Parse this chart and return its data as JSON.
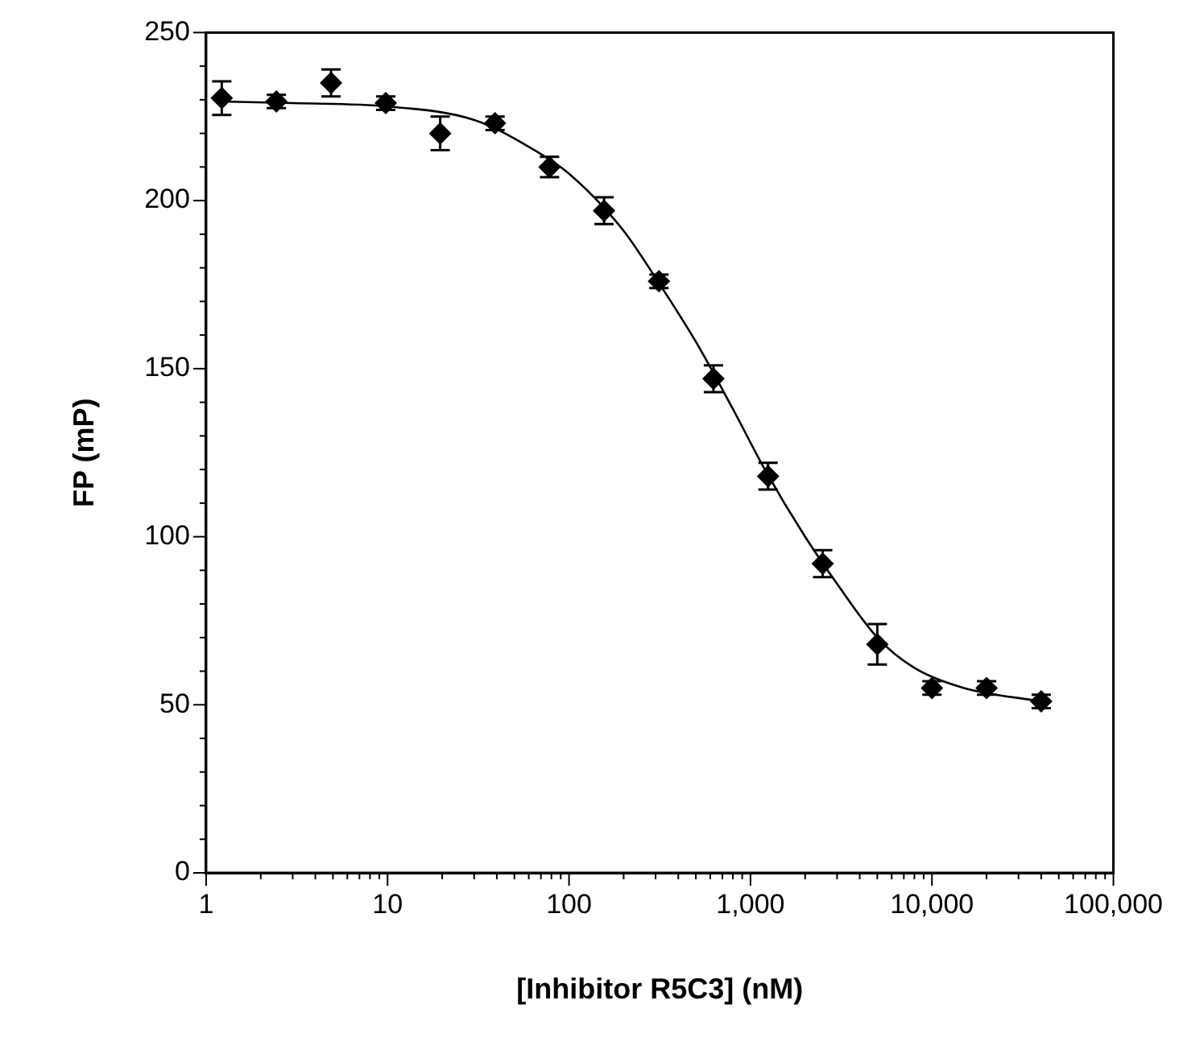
{
  "chart_data": {
    "type": "scatter",
    "xlabel": "[Inhibitor R5C3] (nM)",
    "ylabel": "FP (mP)",
    "log": "x",
    "grid": false,
    "xlim": [
      1,
      100000
    ],
    "xticks": [
      {
        "value": 1,
        "label": "1"
      },
      {
        "value": 2,
        "label": null
      },
      {
        "value": 3,
        "label": null
      },
      {
        "value": 4,
        "label": null
      },
      {
        "value": 5,
        "label": null
      },
      {
        "value": 6,
        "label": null
      },
      {
        "value": 7,
        "label": null
      },
      {
        "value": 8,
        "label": null
      },
      {
        "value": 9,
        "label": null
      },
      {
        "value": 10,
        "label": "10"
      },
      {
        "value": 20,
        "label": null
      },
      {
        "value": 30,
        "label": null
      },
      {
        "value": 40,
        "label": null
      },
      {
        "value": 50,
        "label": null
      },
      {
        "value": 60,
        "label": null
      },
      {
        "value": 70,
        "label": null
      },
      {
        "value": 80,
        "label": null
      },
      {
        "value": 90,
        "label": null
      },
      {
        "value": 100,
        "label": "100"
      },
      {
        "value": 200,
        "label": null
      },
      {
        "value": 300,
        "label": null
      },
      {
        "value": 400,
        "label": null
      },
      {
        "value": 500,
        "label": null
      },
      {
        "value": 600,
        "label": null
      },
      {
        "value": 700,
        "label": null
      },
      {
        "value": 800,
        "label": null
      },
      {
        "value": 900,
        "label": null
      },
      {
        "value": 1000,
        "label": "1,000"
      },
      {
        "value": 2000,
        "label": null
      },
      {
        "value": 3000,
        "label": null
      },
      {
        "value": 4000,
        "label": null
      },
      {
        "value": 5000,
        "label": null
      },
      {
        "value": 6000,
        "label": null
      },
      {
        "value": 7000,
        "label": null
      },
      {
        "value": 8000,
        "label": null
      },
      {
        "value": 9000,
        "label": null
      },
      {
        "value": 10000,
        "label": "10,000"
      },
      {
        "value": 20000,
        "label": null
      },
      {
        "value": 30000,
        "label": null
      },
      {
        "value": 40000,
        "label": null
      },
      {
        "value": 50000,
        "label": null
      },
      {
        "value": 60000,
        "label": null
      },
      {
        "value": 70000,
        "label": null
      },
      {
        "value": 80000,
        "label": null
      },
      {
        "value": 90000,
        "label": null
      },
      {
        "value": 100000,
        "label": "100,000"
      }
    ],
    "ylim": [
      0,
      250
    ],
    "yticks": [
      0,
      {
        "value": 10,
        "label": null
      },
      {
        "value": 20,
        "label": null
      },
      {
        "value": 30,
        "label": null
      },
      {
        "value": 40,
        "label": null
      },
      50,
      {
        "value": 60,
        "label": null
      },
      {
        "value": 70,
        "label": null
      },
      {
        "value": 80,
        "label": null
      },
      {
        "value": 90,
        "label": null
      },
      100,
      {
        "value": 110,
        "label": null
      },
      {
        "value": 120,
        "label": null
      },
      {
        "value": 130,
        "label": null
      },
      {
        "value": 140,
        "label": null
      },
      150,
      {
        "value": 160,
        "label": null
      },
      {
        "value": 170,
        "label": null
      },
      {
        "value": 180,
        "label": null
      },
      {
        "value": 190,
        "label": null
      },
      200,
      {
        "value": 210,
        "label": null
      },
      {
        "value": 220,
        "label": null
      },
      {
        "value": 230,
        "label": null
      },
      {
        "value": 240,
        "label": null
      },
      250
    ],
    "series": [
      {
        "type": "line",
        "color": "#000000",
        "marker": "none",
        "line_style": "solid",
        "x": [
          1.2,
          3,
          10,
          30,
          60,
          100,
          200,
          300,
          500,
          800,
          1200,
          2000,
          3000,
          5000,
          8000,
          15000,
          40000
        ],
        "values": [
          229.5,
          229,
          228,
          224,
          216,
          208,
          191,
          177,
          158,
          138,
          120,
          100,
          86,
          70,
          61,
          55,
          51
        ]
      },
      {
        "color": "#000000",
        "marker": "diamond",
        "x": [
          1.22,
          2.44,
          4.88,
          9.77,
          19.5,
          39.1,
          78.1,
          156,
          313,
          625,
          1250,
          2500,
          5000,
          10000,
          20000,
          40000
        ],
        "values": [
          230.5,
          229.5,
          235,
          229,
          220,
          223,
          210,
          197,
          176,
          147,
          118,
          92,
          68,
          55,
          55,
          51
        ],
        "errors": [
          5,
          2,
          4,
          2,
          5,
          2,
          3,
          4,
          2,
          4,
          4,
          4,
          6,
          2,
          2,
          2
        ]
      }
    ]
  }
}
